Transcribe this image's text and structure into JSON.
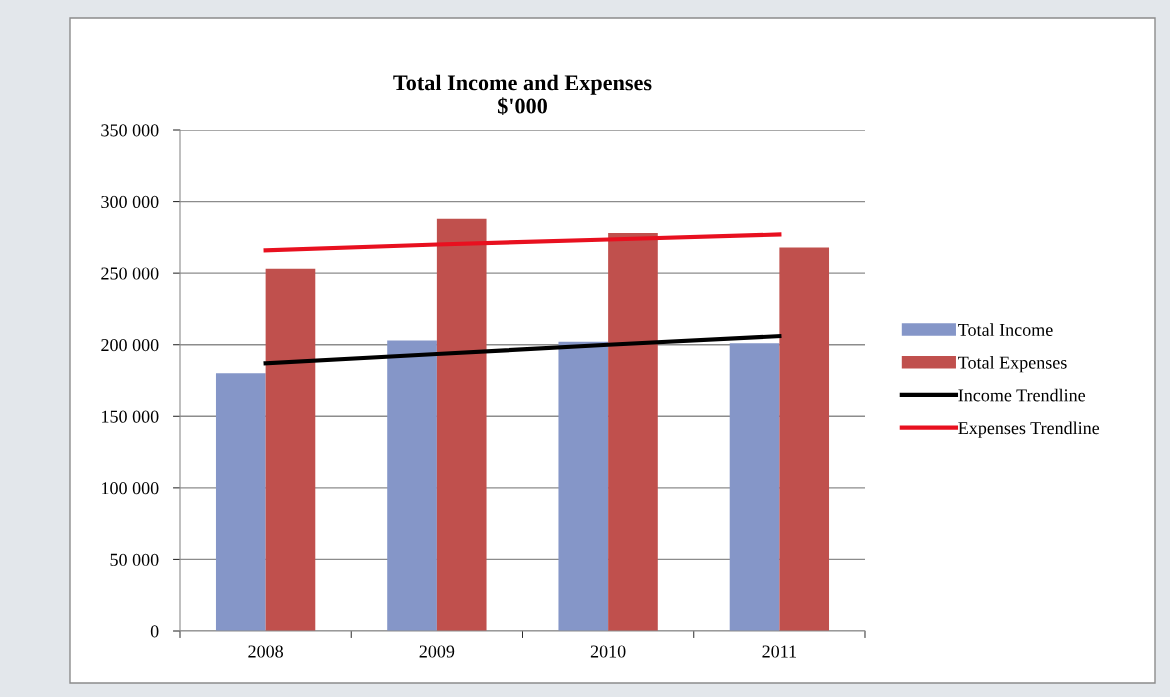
{
  "chart_data": {
    "type": "bar",
    "title": "Total Income and Expenses\n$'000",
    "categories": [
      "2008",
      "2009",
      "2010",
      "2011"
    ],
    "series": [
      {
        "name": "Total Income",
        "color": "#8596c8",
        "values": [
          180000,
          203000,
          202000,
          201000
        ]
      },
      {
        "name": "Total Expenses",
        "color": "#c0504d",
        "values": [
          253000,
          288000,
          278000,
          268000
        ]
      },
      {
        "name": "Income Trendline",
        "type": "line",
        "color": "#000000",
        "values": [
          187000,
          193500,
          200000,
          206000
        ]
      },
      {
        "name": "Expenses Trendline",
        "type": "line",
        "color": "#e8101f",
        "values": [
          266000,
          270000,
          273500,
          277000
        ]
      }
    ],
    "ylim": [
      0,
      350000
    ],
    "yticks": [
      {
        "value": 0,
        "label": "0"
      },
      {
        "value": 50000,
        "label": "50 000"
      },
      {
        "value": 100000,
        "label": "100 000"
      },
      {
        "value": 150000,
        "label": "150 000"
      },
      {
        "value": 200000,
        "label": "200 000"
      },
      {
        "value": 250000,
        "label": "250 000"
      },
      {
        "value": 300000,
        "label": "300 000"
      },
      {
        "value": 350000,
        "label": "350 000"
      }
    ],
    "grid": "y",
    "legend": "right"
  }
}
